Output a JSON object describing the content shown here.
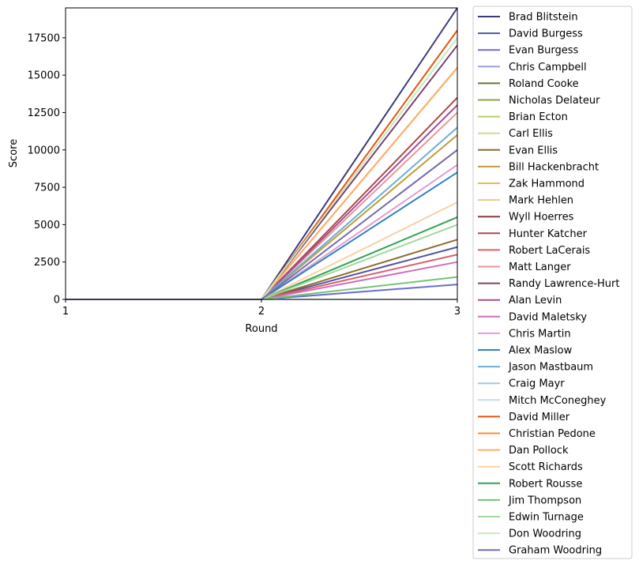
{
  "chart_data": {
    "type": "line",
    "xlabel": "Round",
    "ylabel": "Score",
    "x": [
      1,
      2,
      3
    ],
    "xticks": [
      "1",
      "2",
      "3"
    ],
    "yticks": [
      0,
      2500,
      5000,
      7500,
      10000,
      12500,
      15000,
      17500
    ],
    "xlim": [
      1,
      3
    ],
    "ylim": [
      0,
      19500
    ],
    "grid": false,
    "legend_placement": "outside-right",
    "series": [
      {
        "name": "Brad Blitstein",
        "color": "#393b79",
        "values": [
          0,
          0,
          19500
        ]
      },
      {
        "name": "David Burgess",
        "color": "#5254a3",
        "values": [
          0,
          0,
          3500
        ]
      },
      {
        "name": "Evan Burgess",
        "color": "#6b6ecf",
        "values": [
          0,
          0,
          1000
        ]
      },
      {
        "name": "Chris Campbell",
        "color": "#9c9ede",
        "values": [
          0,
          0,
          0
        ]
      },
      {
        "name": "Roland Cooke",
        "color": "#637939",
        "values": [
          0,
          0,
          0
        ]
      },
      {
        "name": "Nicholas Delateur",
        "color": "#8ca252",
        "values": [
          0,
          0,
          0
        ]
      },
      {
        "name": "Brian Ecton",
        "color": "#b5cf6b",
        "values": [
          0,
          0,
          0
        ]
      },
      {
        "name": "Carl Ellis",
        "color": "#cedb9c",
        "values": [
          0,
          0,
          0
        ]
      },
      {
        "name": "Evan Ellis",
        "color": "#8c6d31",
        "values": [
          0,
          0,
          4000
        ]
      },
      {
        "name": "Bill Hackenbracht",
        "color": "#bd9e39",
        "values": [
          0,
          0,
          11000
        ]
      },
      {
        "name": "Zak Hammond",
        "color": "#e7ba52",
        "values": [
          0,
          0,
          0
        ]
      },
      {
        "name": "Mark Hehlen",
        "color": "#e7cb94",
        "values": [
          0,
          0,
          0
        ]
      },
      {
        "name": "Wyll Hoerres",
        "color": "#843c39",
        "values": [
          0,
          0,
          0
        ]
      },
      {
        "name": "Hunter Katcher",
        "color": "#ad494a",
        "values": [
          0,
          0,
          13500
        ]
      },
      {
        "name": "Robert LaCerais",
        "color": "#d6616b",
        "values": [
          0,
          0,
          3000
        ]
      },
      {
        "name": "Matt Langer",
        "color": "#e7969c",
        "values": [
          0,
          0,
          12500
        ]
      },
      {
        "name": "Randy Lawrence-Hurt",
        "color": "#7b4173",
        "values": [
          0,
          0,
          17000
        ]
      },
      {
        "name": "Alan Levin",
        "color": "#a55194",
        "values": [
          0,
          0,
          13000
        ]
      },
      {
        "name": "David Maletsky",
        "color": "#ce6dbd",
        "values": [
          0,
          0,
          2500
        ]
      },
      {
        "name": "Chris Martin",
        "color": "#de9ed6",
        "values": [
          0,
          0,
          9000
        ]
      },
      {
        "name": "Alex Maslow",
        "color": "#3182bd",
        "values": [
          0,
          0,
          8500
        ]
      },
      {
        "name": "Jason Mastbaum",
        "color": "#6baed6",
        "values": [
          0,
          0,
          11500
        ]
      },
      {
        "name": "Craig Mayr",
        "color": "#9ecae1",
        "values": [
          0,
          0,
          0
        ]
      },
      {
        "name": "Mitch McConeghey",
        "color": "#c6dbef",
        "values": [
          0,
          0,
          0
        ]
      },
      {
        "name": "David Miller",
        "color": "#e6550d",
        "values": [
          0,
          0,
          18000
        ]
      },
      {
        "name": "Christian Pedone",
        "color": "#fd8d3c",
        "values": [
          0,
          0,
          15500
        ]
      },
      {
        "name": "Dan Pollock",
        "color": "#fdae6b",
        "values": [
          0,
          0,
          15500
        ]
      },
      {
        "name": "Scott Richards",
        "color": "#fdd0a2",
        "values": [
          0,
          0,
          6500
        ]
      },
      {
        "name": "Robert Rousse",
        "color": "#31a354",
        "values": [
          0,
          0,
          5500
        ]
      },
      {
        "name": "Jim Thompson",
        "color": "#74c476",
        "values": [
          0,
          0,
          1500
        ]
      },
      {
        "name": "Edwin Turnage",
        "color": "#a1d99b",
        "values": [
          0,
          0,
          5000
        ]
      },
      {
        "name": "Don Woodring",
        "color": "#c7e9c0",
        "values": [
          0,
          0,
          17500
        ]
      },
      {
        "name": "Graham Woodring",
        "color": "#756bb1",
        "values": [
          0,
          0,
          10000
        ]
      }
    ]
  }
}
